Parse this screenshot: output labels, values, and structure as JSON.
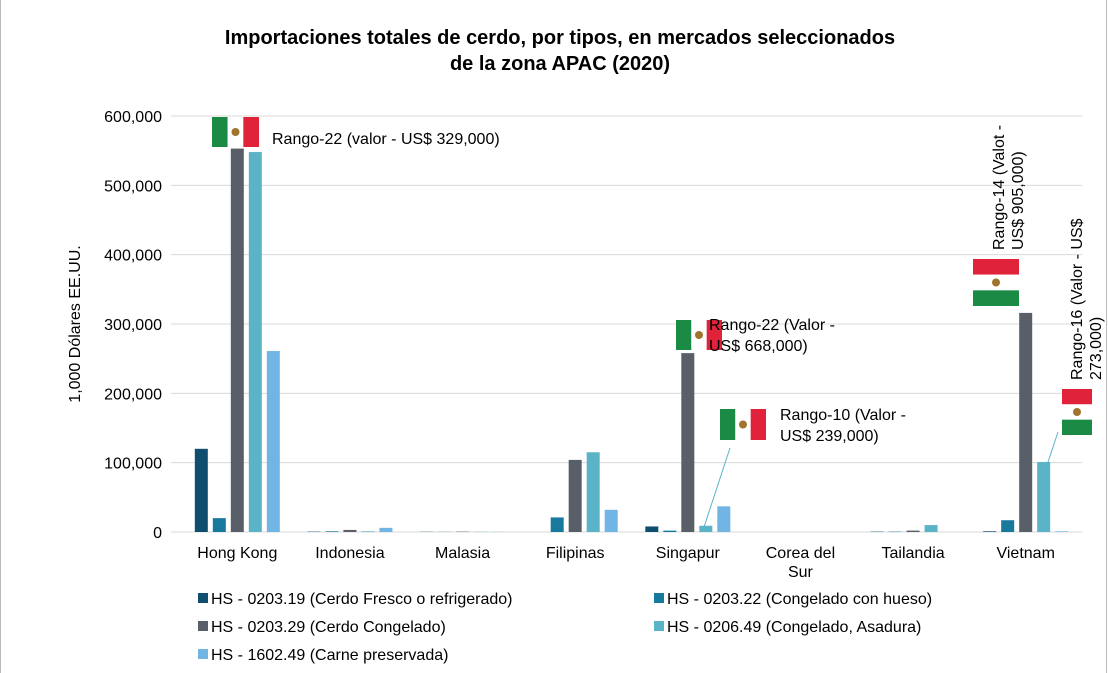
{
  "chart_data": {
    "type": "bar",
    "title": [
      "Importaciones totales de cerdo, por tipos, en mercados seleccionados",
      "de la zona APAC (2020)"
    ],
    "y_label": "1,000 Dólares EE.UU.",
    "categories": [
      [
        "Hong Kong"
      ],
      [
        "Indonesia"
      ],
      [
        "Malasia"
      ],
      [
        "Filipinas"
      ],
      [
        "Singapur"
      ],
      [
        "Corea del",
        "Sur"
      ],
      [
        "Tailandia"
      ],
      [
        "Vietnam"
      ]
    ],
    "series": [
      {
        "name": "HS - 0203.19 (Cerdo Fresco o refrigerado)",
        "color": "#0f4e6e",
        "values": [
          120000,
          500,
          300,
          0,
          8000,
          0,
          500,
          1000
        ]
      },
      {
        "name": "HS - 0203.22 (Congelado con hueso)",
        "color": "#17799b",
        "values": [
          20000,
          1000,
          200,
          21000,
          2000,
          0,
          500,
          17000
        ]
      },
      {
        "name": "HS - 0203.29 (Cerdo Congelado)",
        "color": "#595f68",
        "values": [
          553000,
          3000,
          500,
          104000,
          258000,
          0,
          2000,
          316000
        ]
      },
      {
        "name": "HS - 0206.49 (Congelado, Asadura)",
        "color": "#5bb3c8",
        "values": [
          548000,
          1000,
          300,
          115000,
          9000,
          0,
          10000,
          101000
        ]
      },
      {
        "name": "HS - 1602.49 (Carne preservada)",
        "color": "#70b5e3",
        "values": [
          261000,
          6000,
          200,
          32000,
          37000,
          0,
          0,
          1000
        ]
      }
    ],
    "ylim": [
      0,
      600000
    ],
    "yticks": [
      0,
      {
        "value": 100000,
        "label": "100,000"
      },
      {
        "value": 200000,
        "label": "200,000"
      },
      {
        "value": 300000,
        "label": "300,000"
      },
      {
        "value": 400000,
        "label": "400,000"
      },
      {
        "value": 500000,
        "label": "500,000"
      },
      {
        "value": 600000,
        "label": "600,000"
      }
    ],
    "grid": true,
    "annotations": [
      [
        "Rango-22 (valor - US$ 329,000)"
      ],
      [
        "Rango-22 (Valor -",
        "US$ 668,000)"
      ],
      [
        "Rango-10 (Valor -",
        "US$ 239,000)"
      ],
      [
        "Rango-14 (Valot -",
        "US$ 905,000)"
      ],
      [
        "Rango-16 (Valor - US$",
        "273,000)"
      ]
    ]
  }
}
